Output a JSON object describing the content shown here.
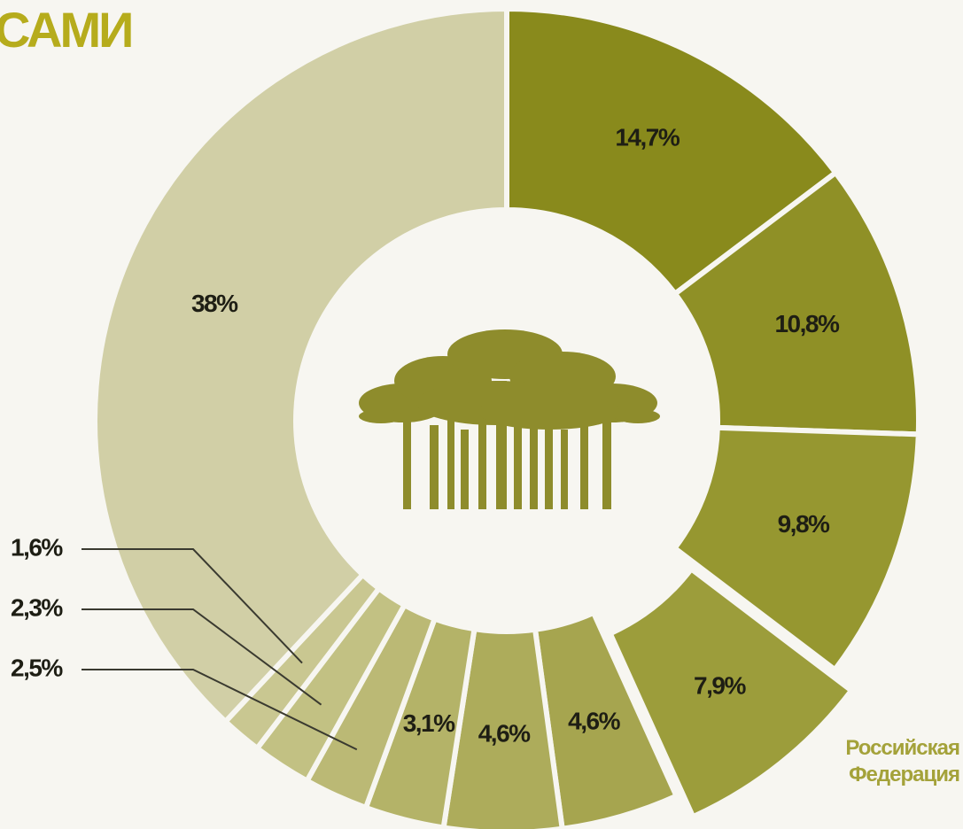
{
  "chart_data": {
    "type": "donut",
    "title": "САМИ",
    "categories": [
      null,
      null,
      null,
      "Российская Федерация",
      null,
      null,
      null,
      null,
      null,
      null,
      null
    ],
    "values": [
      14.7,
      10.8,
      9.8,
      7.9,
      4.6,
      4.6,
      3.1,
      2.5,
      2.3,
      1.6,
      38
    ],
    "value_labels": [
      "14,7%",
      "10,8%",
      "9,8%",
      "7,9%",
      "4,6%",
      "4,6%",
      "3,1%",
      "2,5%",
      "2,3%",
      "1,6%",
      "38%"
    ],
    "colors": [
      "#898a1c",
      "#8f9026",
      "#969730",
      "#9c9d3b",
      "#a6a54f",
      "#adac5b",
      "#b4b368",
      "#bbb975",
      "#c2c183",
      "#c9c791",
      "#d1cfa6"
    ]
  }
}
